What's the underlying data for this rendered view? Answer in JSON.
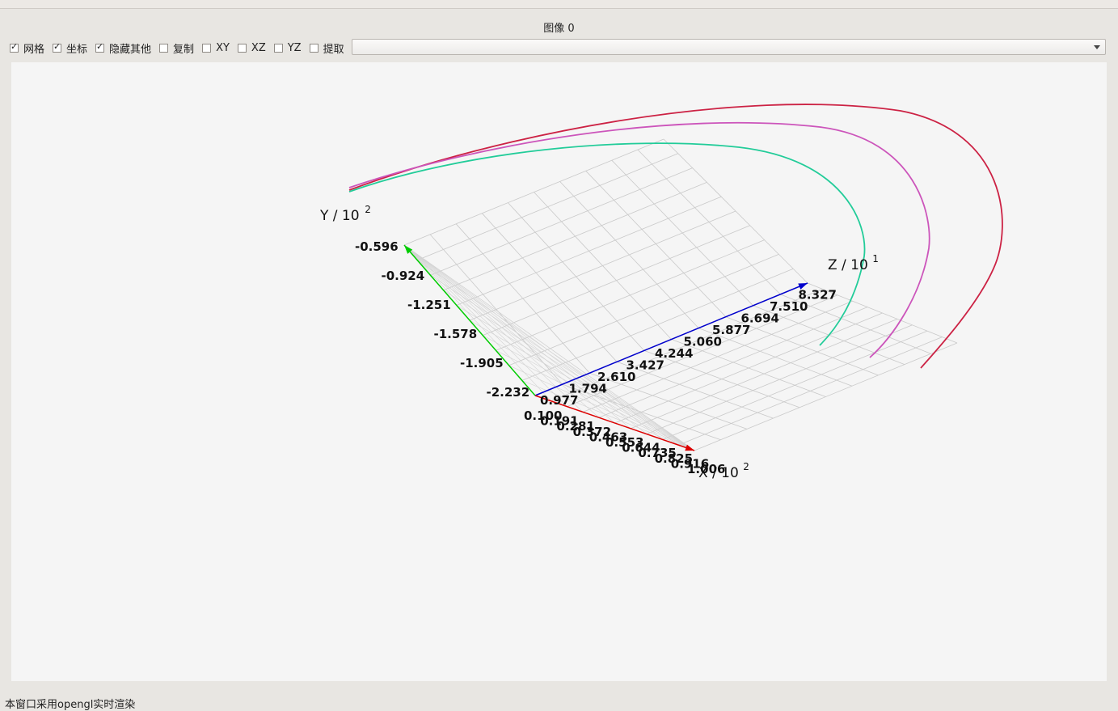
{
  "window": {
    "title": "图像 0"
  },
  "toolbar": {
    "checkboxes": [
      {
        "label": "网格",
        "checked": true
      },
      {
        "label": "坐标",
        "checked": true
      },
      {
        "label": "隐藏其他",
        "checked": true
      },
      {
        "label": "复制",
        "checked": false
      },
      {
        "label": "XY",
        "checked": false
      },
      {
        "label": "XZ",
        "checked": false
      },
      {
        "label": "YZ",
        "checked": false
      },
      {
        "label": "提取",
        "checked": false
      }
    ],
    "dropdown": {
      "value": ""
    }
  },
  "plot": {
    "axes": {
      "y": {
        "title": "Y / 10",
        "exponent": "2",
        "color": "#00cc00",
        "ticks": [
          "-0.596",
          "-0.924",
          "-1.251",
          "-1.578",
          "-1.905",
          "-2.232"
        ]
      },
      "z": {
        "title": "Z / 10",
        "exponent": "1",
        "color": "#0000cc",
        "ticks": [
          "0.977",
          "1.794",
          "2.610",
          "3.427",
          "4.244",
          "5.060",
          "5.877",
          "6.694",
          "7.510",
          "8.327"
        ]
      },
      "x": {
        "title": "X / 10",
        "exponent": "2",
        "color": "#dd0000",
        "ticks": [
          "0.100",
          "0.191",
          "0.281",
          "0.372",
          "0.463",
          "0.553",
          "0.644",
          "0.735",
          "0.825",
          "0.916",
          "1.006"
        ]
      }
    },
    "curve_colors": [
      "#cc2244",
      "#cc55bb",
      "#22cc99"
    ]
  },
  "status": {
    "text": "本窗口采用opengl实时渲染"
  }
}
